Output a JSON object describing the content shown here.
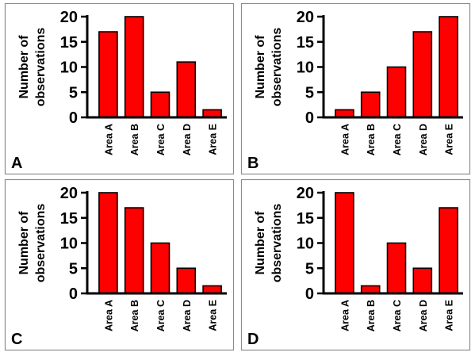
{
  "chart_data": [
    {
      "type": "bar",
      "panel_label": "A",
      "ylabel_lines": [
        "Number of",
        "observations"
      ],
      "categories": [
        "Area A",
        "Area B",
        "Area C",
        "Area D",
        "Area E"
      ],
      "values": [
        17,
        20,
        5,
        11,
        1.5
      ],
      "yticks": [
        0,
        5,
        10,
        15,
        20
      ],
      "ylim": [
        0,
        20
      ],
      "bar_color": "#ff0000",
      "grid": false
    },
    {
      "type": "bar",
      "panel_label": "B",
      "ylabel_lines": [
        "Number of",
        "observations"
      ],
      "categories": [
        "Area A",
        "Area B",
        "Area C",
        "Area D",
        "Area E"
      ],
      "values": [
        1.5,
        5,
        10,
        17,
        20
      ],
      "yticks": [
        0,
        5,
        10,
        15,
        20
      ],
      "ylim": [
        0,
        20
      ],
      "bar_color": "#ff0000",
      "grid": false
    },
    {
      "type": "bar",
      "panel_label": "C",
      "ylabel_lines": [
        "Number of",
        "observations"
      ],
      "categories": [
        "Area A",
        "Area B",
        "Area C",
        "Area D",
        "Area E"
      ],
      "values": [
        20,
        17,
        10,
        5,
        1.5
      ],
      "yticks": [
        0,
        5,
        10,
        15,
        20
      ],
      "ylim": [
        0,
        20
      ],
      "bar_color": "#ff0000",
      "grid": false
    },
    {
      "type": "bar",
      "panel_label": "D",
      "ylabel_lines": [
        "Number of",
        "observations"
      ],
      "categories": [
        "Area A",
        "Area B",
        "Area C",
        "Area D",
        "Area E"
      ],
      "values": [
        20,
        1.5,
        10,
        5,
        17
      ],
      "yticks": [
        0,
        5,
        10,
        15,
        20
      ],
      "ylim": [
        0,
        20
      ],
      "bar_color": "#ff0000",
      "grid": false
    }
  ]
}
